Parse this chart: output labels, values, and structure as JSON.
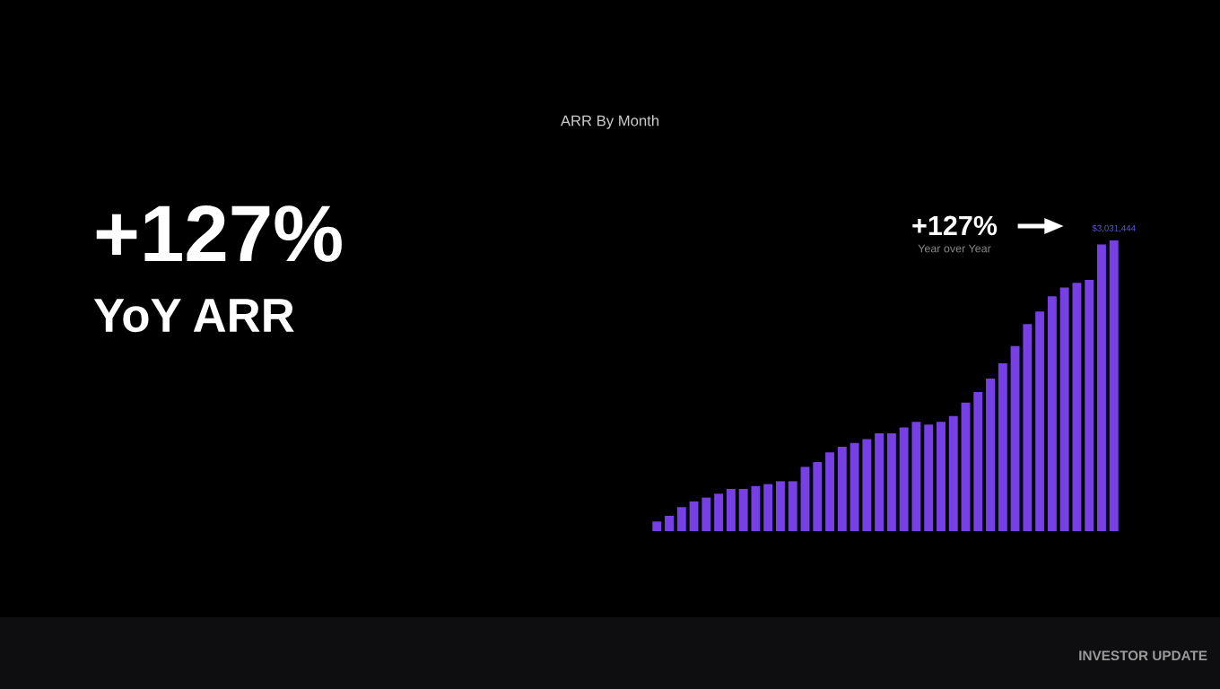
{
  "chart_data": {
    "type": "bar",
    "title": "ARR By Month",
    "ylim": [
      0,
      3031444
    ],
    "categories": [
      null,
      null,
      null,
      null,
      null,
      null,
      null,
      null,
      null,
      null,
      null,
      null,
      null,
      null,
      null,
      null,
      null,
      null,
      null,
      null,
      null,
      null,
      null,
      null,
      null,
      null,
      null,
      null,
      null,
      null,
      null,
      null,
      null,
      null,
      null,
      null,
      null,
      null
    ],
    "values": [
      100000,
      160000,
      250000,
      310000,
      350000,
      390000,
      440000,
      440000,
      470000,
      490000,
      520000,
      520000,
      670000,
      720000,
      820000,
      880000,
      920000,
      960000,
      1020000,
      1020000,
      1080000,
      1140000,
      1110000,
      1140000,
      1200000,
      1340000,
      1450000,
      1590000,
      1750000,
      1930000,
      2160000,
      2290000,
      2450000,
      2540000,
      2590000,
      2620000,
      2990000,
      3031444
    ],
    "value_labels": [
      null,
      null,
      null,
      null,
      null,
      null,
      null,
      null,
      null,
      null,
      null,
      null,
      null,
      null,
      null,
      null,
      null,
      null,
      null,
      null,
      null,
      null,
      null,
      null,
      null,
      null,
      null,
      null,
      null,
      null,
      null,
      null,
      null,
      null,
      null,
      null,
      null,
      "$3,031,444"
    ],
    "color": "#7740e6",
    "annotations": [
      "+127%",
      "YoY ARR",
      "+127%",
      "Year over Year",
      "INVESTOR UPDATE"
    ]
  }
}
